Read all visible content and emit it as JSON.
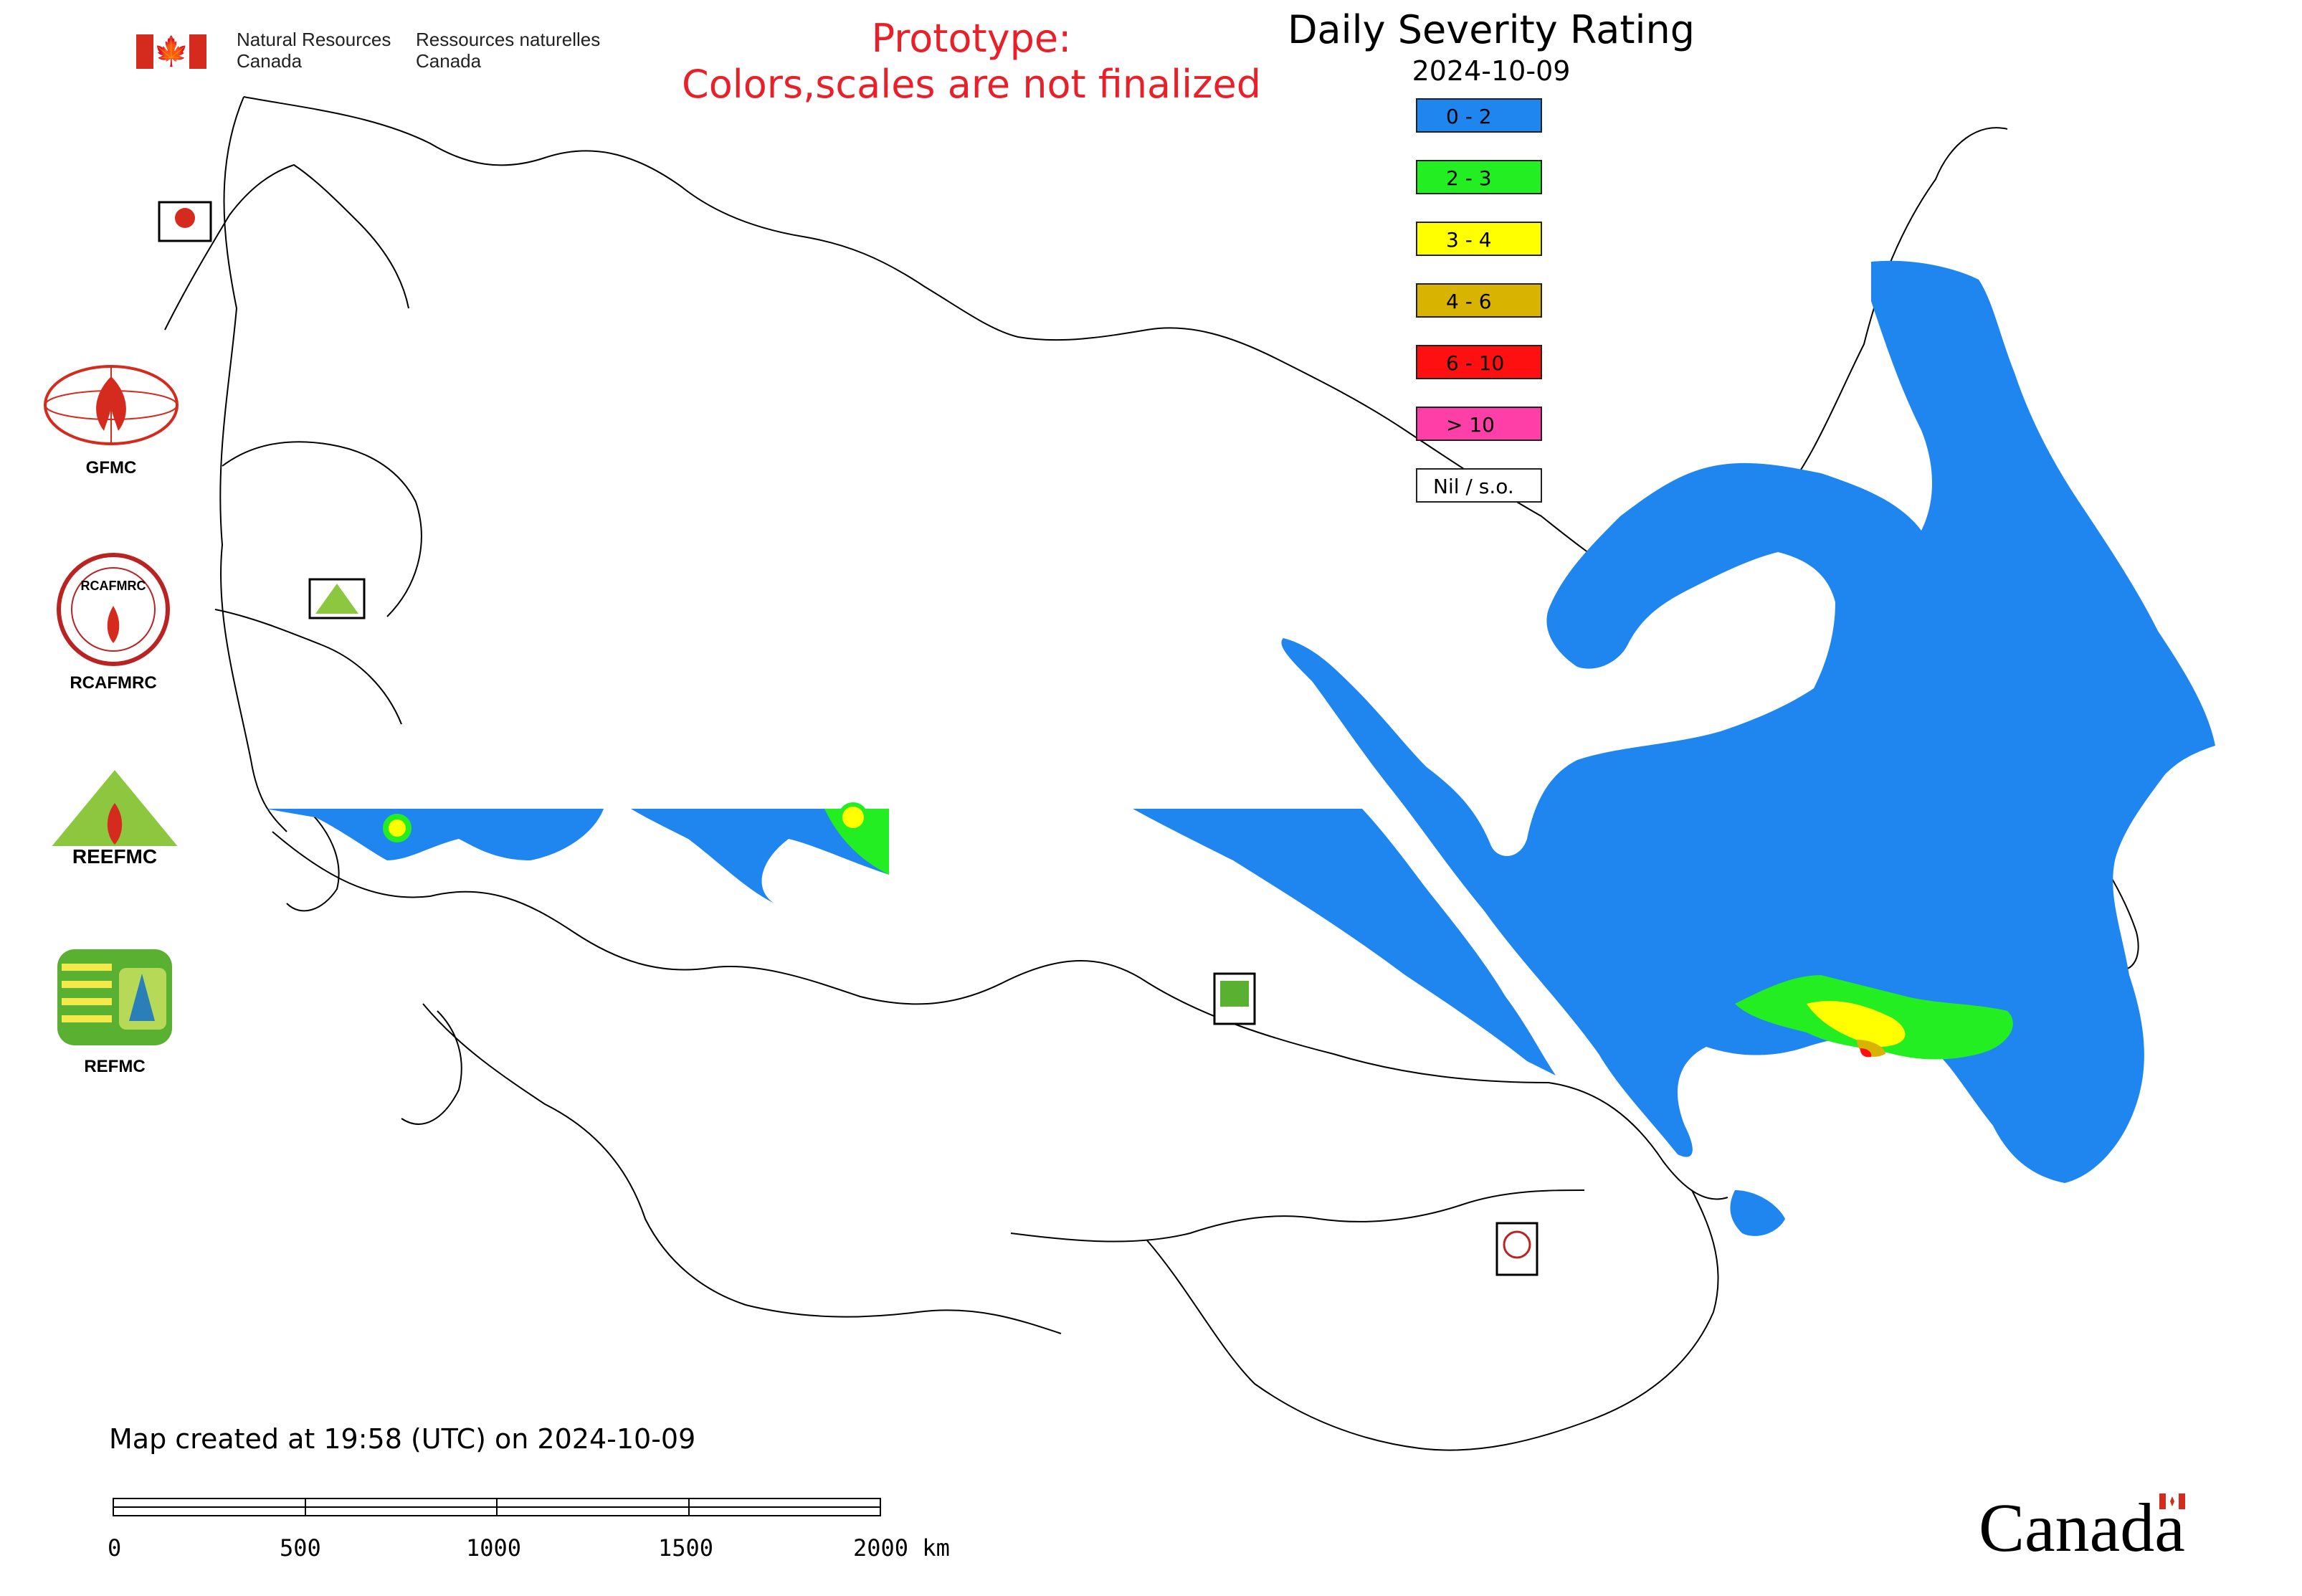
{
  "header": {
    "org_en_line1": "Natural Resources",
    "org_en_line2": "Canada",
    "org_fr_line1": "Ressources naturelles",
    "org_fr_line2": "Canada",
    "prototype_line1": "Prototype:",
    "prototype_line2": "Colors,scales are not finalized"
  },
  "title": {
    "main": "Daily Severity Rating",
    "date": "2024-10-09"
  },
  "legend": {
    "items": [
      {
        "label": "0 - 2",
        "color": "#1f86f0"
      },
      {
        "label": "2 - 3",
        "color": "#22ee22"
      },
      {
        "label": "3 - 4",
        "color": "#ffff00"
      },
      {
        "label": "4 - 6",
        "color": "#d8b400"
      },
      {
        "label": "6 - 10",
        "color": "#ff1010"
      },
      {
        "label": "> 10",
        "color": "#ff3fa8"
      },
      {
        "label": "Nil / s.o.",
        "color": "#ffffff"
      }
    ]
  },
  "logos": {
    "gfmc": "GFMC",
    "rcafmrc": "RCAFMRC",
    "reefmc": "REEFMC",
    "refmc": "REFMC",
    "reefmc_wordmark": "REEFMC",
    "rcafmrc_ring": "RCAFMRC"
  },
  "footer": {
    "created": "Map created at 19:58 (UTC) on 2024-10-09",
    "scale_labels": [
      "0",
      "500",
      "1000",
      "1500",
      "2000 km"
    ],
    "wordmark": "Canada"
  },
  "colors": {
    "low": "#1f86f0",
    "outline": "#000000",
    "prototype_text": "#e8202a"
  }
}
